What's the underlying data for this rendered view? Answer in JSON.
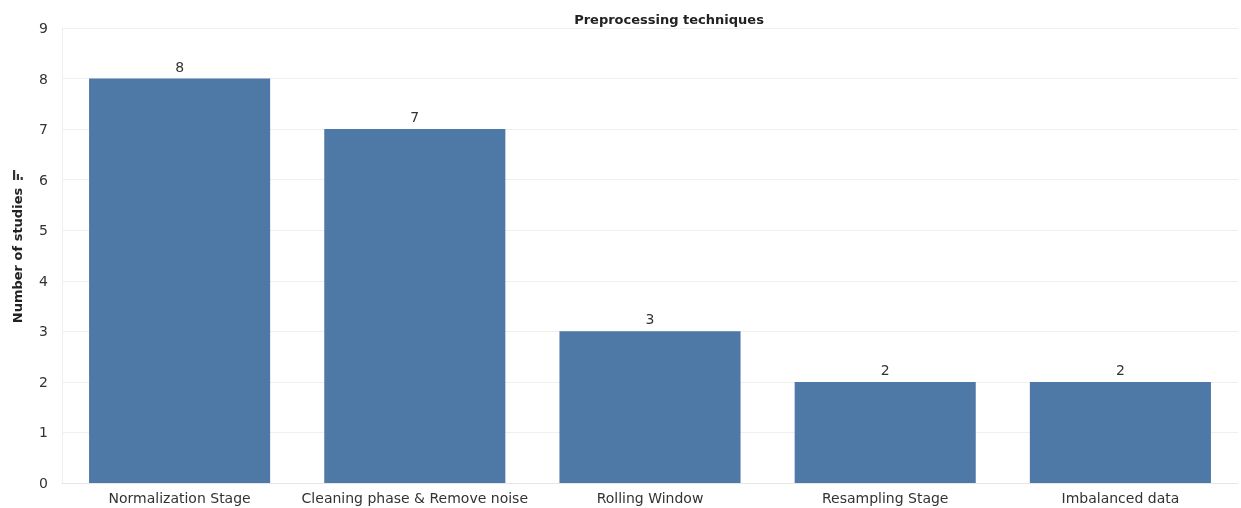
{
  "chart_data": {
    "type": "bar",
    "title": "Preprocessing techniques",
    "ylabel": "Number of studies",
    "categories": [
      "Normalization Stage",
      "Cleaning phase & Remove noise",
      "Rolling Window",
      "Resampling Stage",
      "Imbalanced data"
    ],
    "values": [
      8,
      7,
      3,
      2,
      2
    ],
    "color": "#4e79a7",
    "data_labels": true,
    "ylim": [
      0,
      9
    ],
    "yticks": [
      0,
      1,
      2,
      3,
      4,
      5,
      6,
      7,
      8,
      9
    ],
    "grid": "y"
  }
}
